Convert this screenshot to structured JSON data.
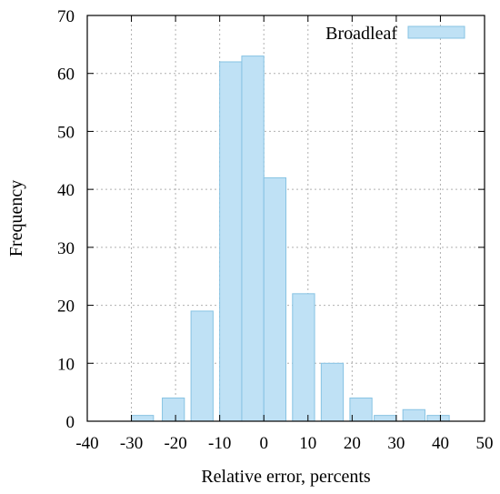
{
  "chart_data": {
    "type": "bar",
    "x": [
      -30,
      -25,
      -20,
      -15,
      -10,
      -5,
      0,
      5,
      10,
      15,
      20,
      25,
      30,
      35,
      40,
      45,
      50
    ],
    "bars": [
      {
        "center": -27.5,
        "width": 5,
        "value": 1
      },
      {
        "center": -20.5,
        "width": 5,
        "value": 4
      },
      {
        "center": -14,
        "width": 5,
        "value": 19
      },
      {
        "center": -7.5,
        "width": 5,
        "value": 62
      },
      {
        "center": -2.5,
        "width": 5,
        "value": 63
      },
      {
        "center": 2.5,
        "width": 5,
        "value": 42
      },
      {
        "center": 9,
        "width": 5,
        "value": 22
      },
      {
        "center": 15.5,
        "width": 5,
        "value": 10
      },
      {
        "center": 22,
        "width": 5,
        "value": 4
      },
      {
        "center": 27.5,
        "width": 5,
        "value": 1
      },
      {
        "center": 34,
        "width": 5,
        "value": 2
      },
      {
        "center": 39.5,
        "width": 5,
        "value": 1
      }
    ],
    "xlabel": "Relative error, percents",
    "ylabel": "Frequency",
    "legend": "Broadleaf",
    "xlim": [
      -40,
      50
    ],
    "ylim": [
      0,
      70
    ],
    "xticks": [
      -40,
      -30,
      -20,
      -10,
      0,
      10,
      20,
      30,
      40,
      50
    ],
    "yticks": [
      0,
      10,
      20,
      30,
      40,
      50,
      60,
      70
    ],
    "grid": true,
    "legend_position": "top-right",
    "colors": {
      "fill": "#bfe1f5",
      "stroke": "#87c3e3",
      "grid": "#b0b0b0",
      "axis": "#000000"
    }
  }
}
